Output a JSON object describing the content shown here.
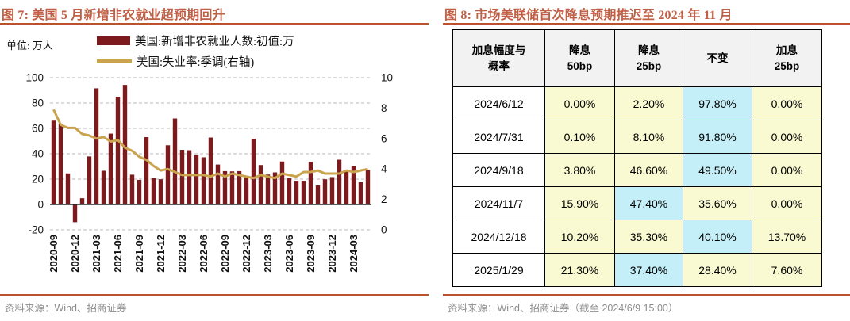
{
  "colors": {
    "title": "#c05f45",
    "rule": "#bc512e",
    "bar": "#7c1a1d",
    "line": "#c9a34e",
    "grid": "#c8c8c8",
    "zero_axis": "#262626",
    "table_yellow": "#f9f9d2",
    "table_blue": "#c4eff8",
    "table_header_bg": "#f2f2f2",
    "source_text": "#8c8c8c"
  },
  "chart_data": [
    {
      "type": "bar",
      "title": "图 7:  美国 5 月新增非农就业超预期回升",
      "unit_label": "单位: 万人",
      "source": "资料来源：Wind、招商证券",
      "x": [
        "2020-09",
        "2020-10",
        "2020-11",
        "2020-12",
        "2021-01",
        "2021-02",
        "2021-03",
        "2021-04",
        "2021-05",
        "2021-06",
        "2021-07",
        "2021-08",
        "2021-09",
        "2021-10",
        "2021-11",
        "2021-12",
        "2022-01",
        "2022-02",
        "2022-03",
        "2022-04",
        "2022-05",
        "2022-06",
        "2022-07",
        "2022-08",
        "2022-09",
        "2022-10",
        "2022-11",
        "2022-12",
        "2023-01",
        "2023-02",
        "2023-03",
        "2023-04",
        "2023-05",
        "2023-06",
        "2023-07",
        "2023-08",
        "2023-09",
        "2023-10",
        "2023-11",
        "2023-12",
        "2024-01",
        "2024-02",
        "2024-03",
        "2024-04",
        "2024-05"
      ],
      "x_tick_every": 3,
      "series": [
        {
          "name": "美国:新增非农就业人数:初值:万",
          "kind": "bar",
          "axis": "left",
          "color": "#7c1a1d",
          "values": [
            66.1,
            63.8,
            24.5,
            -14,
            4.9,
            37.9,
            91.6,
            26.6,
            55.9,
            85,
            94.3,
            23.5,
            19.4,
            53.1,
            21,
            19.9,
            46.7,
            67.8,
            43.1,
            42.8,
            39,
            37.2,
            52.8,
            31.5,
            26.3,
            26.1,
            26.3,
            22.3,
            51.7,
            31.1,
            23.6,
            25.3,
            33.9,
            20.9,
            18.7,
            18.7,
            33.6,
            15,
            19.9,
            21.6,
            35.3,
            27.5,
            30.3,
            17.5,
            27.2
          ]
        },
        {
          "name": "美国:失业率:季调(右轴)",
          "kind": "line",
          "axis": "right",
          "color": "#c9a34e",
          "values": [
            7.9,
            6.9,
            6.7,
            6.7,
            6.3,
            6.2,
            6.0,
            6.1,
            5.8,
            5.9,
            5.4,
            5.2,
            4.8,
            4.6,
            4.2,
            3.9,
            4.0,
            3.8,
            3.6,
            3.6,
            3.6,
            3.6,
            3.5,
            3.7,
            3.5,
            3.7,
            3.6,
            3.5,
            3.4,
            3.6,
            3.5,
            3.4,
            3.7,
            3.6,
            3.5,
            3.8,
            3.8,
            3.9,
            3.7,
            3.7,
            3.7,
            3.9,
            3.8,
            3.9,
            4.0
          ]
        }
      ],
      "left_axis": {
        "min": -20,
        "max": 100,
        "ticks": [
          100,
          80,
          60,
          40,
          20,
          0,
          -20
        ]
      },
      "right_axis": {
        "min": 0,
        "max": 10,
        "ticks": [
          10,
          8,
          6,
          4,
          2,
          0
        ]
      },
      "grid": "dashed horizontal"
    },
    {
      "type": "table",
      "title": "图 8:  市场美联储首次降息预期推迟至 2024 年 11 月",
      "source": "资料来源：Wind、招商证券（截至 2024/6/9 15:00）",
      "columns": [
        "加息幅度与\n概率",
        "降息\n50bp",
        "降息\n25bp",
        "不变",
        "加息\n25bp"
      ],
      "rows": [
        {
          "date": "2024/6/12",
          "values": [
            "0.00%",
            "2.20%",
            "97.80%",
            "0.00%"
          ],
          "highlight": 2
        },
        {
          "date": "2024/7/31",
          "values": [
            "0.10%",
            "8.10%",
            "91.80%",
            "0.00%"
          ],
          "highlight": 2
        },
        {
          "date": "2024/9/18",
          "values": [
            "3.80%",
            "46.60%",
            "49.50%",
            "0.00%"
          ],
          "highlight": 2
        },
        {
          "date": "2024/11/7",
          "values": [
            "15.90%",
            "47.40%",
            "35.60%",
            "0.00%"
          ],
          "highlight": 1
        },
        {
          "date": "2024/12/18",
          "values": [
            "10.20%",
            "35.30%",
            "40.10%",
            "13.70%"
          ],
          "highlight": 2
        },
        {
          "date": "2025/1/29",
          "values": [
            "21.30%",
            "37.40%",
            "28.40%",
            "7.60%"
          ],
          "highlight": 1
        }
      ]
    }
  ]
}
